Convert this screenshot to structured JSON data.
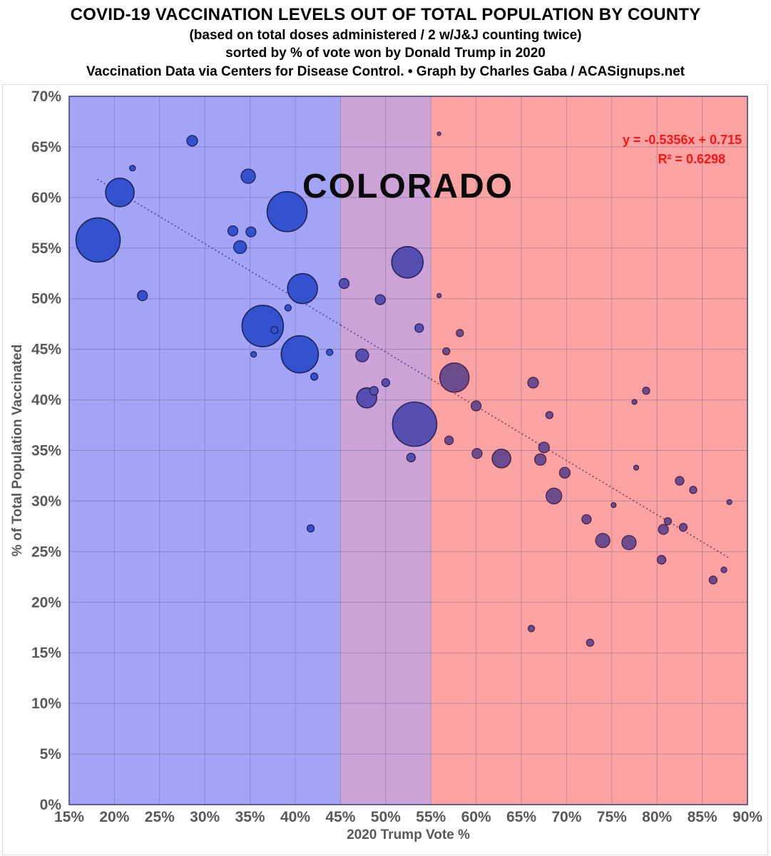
{
  "header": {
    "title": "COVID-19 VACCINATION LEVELS OUT OF TOTAL POPULATION BY COUNTY",
    "subtitle1": "(based on total doses administered / 2 w/J&J counting twice)",
    "subtitle2": "sorted by % of vote won by Donald Trump in 2020",
    "subtitle3": "Vaccination Data via Centers for Disease Control. • Graph by Charles Gaba / ACASignups.net"
  },
  "chart_data": {
    "type": "scatter",
    "state_label": "COLORADO",
    "equation": "y = -0.5356x + 0.715",
    "r_squared": "R² = 0.6298",
    "xlabel": "2020 Trump Vote %",
    "ylabel": "% of Total Population Vaccinated",
    "xlim": [
      15,
      90
    ],
    "ylim": [
      0,
      70
    ],
    "x_ticks": [
      15,
      20,
      25,
      30,
      35,
      40,
      45,
      50,
      55,
      60,
      65,
      70,
      75,
      80,
      85,
      90
    ],
    "y_ticks": [
      0,
      5,
      10,
      15,
      20,
      25,
      30,
      35,
      40,
      45,
      50,
      55,
      60,
      65,
      70
    ],
    "tick_suffix": "%",
    "grid": true,
    "legend": "none",
    "colors": {
      "axis_text": "#595959",
      "title_text": "#000000",
      "equation_text": "#ff1414",
      "state_label_text": "#0a0a0a",
      "gridline": "rgba(80,80,120,0.35)",
      "plot_border": "#3c3c72",
      "outer_border": "#d9d9d9",
      "region_blue": "#a4a4f6",
      "region_purple": "#cba3d7",
      "region_red": "#fba3a3",
      "bubble_fill": {
        "blue": "#3452cd",
        "purple": "#574eb2",
        "red": "#6b4d8f"
      },
      "bubble_stroke": {
        "blue": "#1b2455",
        "purple": "#2c2355",
        "red": "#4d2347"
      },
      "trend_segment": {
        "blue": "#45458a",
        "purple": "#5c4579",
        "red": "#6b4260"
      }
    },
    "regions": [
      {
        "name": "dem-leaning",
        "x0": 15,
        "x1": 45,
        "zone": "blue"
      },
      {
        "name": "swing",
        "x0": 45,
        "x1": 55,
        "zone": "purple"
      },
      {
        "name": "gop-leaning",
        "x0": 55,
        "x1": 90,
        "zone": "red"
      }
    ],
    "trendline": {
      "slope": -0.5356,
      "intercept": 0.715,
      "x_start": 18.1,
      "x_end": 88.0,
      "style": "dotted"
    },
    "points": [
      {
        "x": 18.2,
        "y": 55.8,
        "r": 31
      },
      {
        "x": 20.6,
        "y": 60.5,
        "r": 20
      },
      {
        "x": 22.0,
        "y": 62.9,
        "r": 4
      },
      {
        "x": 28.6,
        "y": 65.6,
        "r": 7.5
      },
      {
        "x": 34.8,
        "y": 62.1,
        "r": 10
      },
      {
        "x": 39.1,
        "y": 58.6,
        "r": 28
      },
      {
        "x": 33.1,
        "y": 56.7,
        "r": 7
      },
      {
        "x": 35.1,
        "y": 56.6,
        "r": 7
      },
      {
        "x": 33.9,
        "y": 55.1,
        "r": 9
      },
      {
        "x": 23.1,
        "y": 50.3,
        "r": 7
      },
      {
        "x": 40.8,
        "y": 51.0,
        "r": 21
      },
      {
        "x": 39.2,
        "y": 49.1,
        "r": 4.5
      },
      {
        "x": 36.4,
        "y": 47.3,
        "r": 29
      },
      {
        "x": 37.7,
        "y": 46.9,
        "r": 5,
        "ring": true
      },
      {
        "x": 40.5,
        "y": 44.5,
        "r": 26
      },
      {
        "x": 35.4,
        "y": 44.5,
        "r": 4
      },
      {
        "x": 42.1,
        "y": 42.3,
        "r": 5
      },
      {
        "x": 43.8,
        "y": 44.7,
        "r": 4.5
      },
      {
        "x": 41.7,
        "y": 27.3,
        "r": 5
      },
      {
        "x": 45.4,
        "y": 51.5,
        "r": 7
      },
      {
        "x": 49.4,
        "y": 49.9,
        "r": 7
      },
      {
        "x": 52.4,
        "y": 53.6,
        "r": 22
      },
      {
        "x": 47.4,
        "y": 44.4,
        "r": 9
      },
      {
        "x": 53.7,
        "y": 47.1,
        "r": 6
      },
      {
        "x": 47.9,
        "y": 40.2,
        "r": 14
      },
      {
        "x": 48.7,
        "y": 40.9,
        "r": 6
      },
      {
        "x": 50.0,
        "y": 41.7,
        "r": 5.5
      },
      {
        "x": 53.2,
        "y": 37.6,
        "r": 31
      },
      {
        "x": 52.8,
        "y": 34.3,
        "r": 6
      },
      {
        "x": 55.9,
        "y": 66.3,
        "r": 2.5
      },
      {
        "x": 55.9,
        "y": 50.3,
        "r": 3
      },
      {
        "x": 58.2,
        "y": 46.6,
        "r": 5
      },
      {
        "x": 56.7,
        "y": 44.8,
        "r": 5
      },
      {
        "x": 57.6,
        "y": 42.2,
        "r": 20.5
      },
      {
        "x": 60.0,
        "y": 39.4,
        "r": 7
      },
      {
        "x": 66.3,
        "y": 41.7,
        "r": 7.5
      },
      {
        "x": 78.8,
        "y": 40.9,
        "r": 5
      },
      {
        "x": 77.5,
        "y": 39.8,
        "r": 3.5
      },
      {
        "x": 68.1,
        "y": 38.5,
        "r": 5
      },
      {
        "x": 57.0,
        "y": 36.0,
        "r": 6
      },
      {
        "x": 60.1,
        "y": 34.7,
        "r": 7
      },
      {
        "x": 62.8,
        "y": 34.2,
        "r": 13
      },
      {
        "x": 67.5,
        "y": 35.3,
        "r": 7.5
      },
      {
        "x": 67.1,
        "y": 34.1,
        "r": 8
      },
      {
        "x": 69.8,
        "y": 32.8,
        "r": 7.5
      },
      {
        "x": 77.7,
        "y": 33.3,
        "r": 3.5
      },
      {
        "x": 68.6,
        "y": 30.5,
        "r": 11
      },
      {
        "x": 82.5,
        "y": 32.0,
        "r": 6
      },
      {
        "x": 84.0,
        "y": 31.1,
        "r": 5
      },
      {
        "x": 88.0,
        "y": 29.9,
        "r": 3.5
      },
      {
        "x": 75.2,
        "y": 29.6,
        "r": 3.5
      },
      {
        "x": 72.2,
        "y": 28.2,
        "r": 6.5
      },
      {
        "x": 81.2,
        "y": 28.0,
        "r": 5
      },
      {
        "x": 80.7,
        "y": 27.2,
        "r": 7
      },
      {
        "x": 82.9,
        "y": 27.4,
        "r": 5.5
      },
      {
        "x": 74.0,
        "y": 26.1,
        "r": 10
      },
      {
        "x": 76.9,
        "y": 25.9,
        "r": 10
      },
      {
        "x": 80.5,
        "y": 24.2,
        "r": 6
      },
      {
        "x": 87.4,
        "y": 23.2,
        "r": 4
      },
      {
        "x": 86.2,
        "y": 22.2,
        "r": 5.5
      },
      {
        "x": 66.1,
        "y": 17.4,
        "r": 4.5
      },
      {
        "x": 72.6,
        "y": 16.0,
        "r": 5
      }
    ]
  }
}
